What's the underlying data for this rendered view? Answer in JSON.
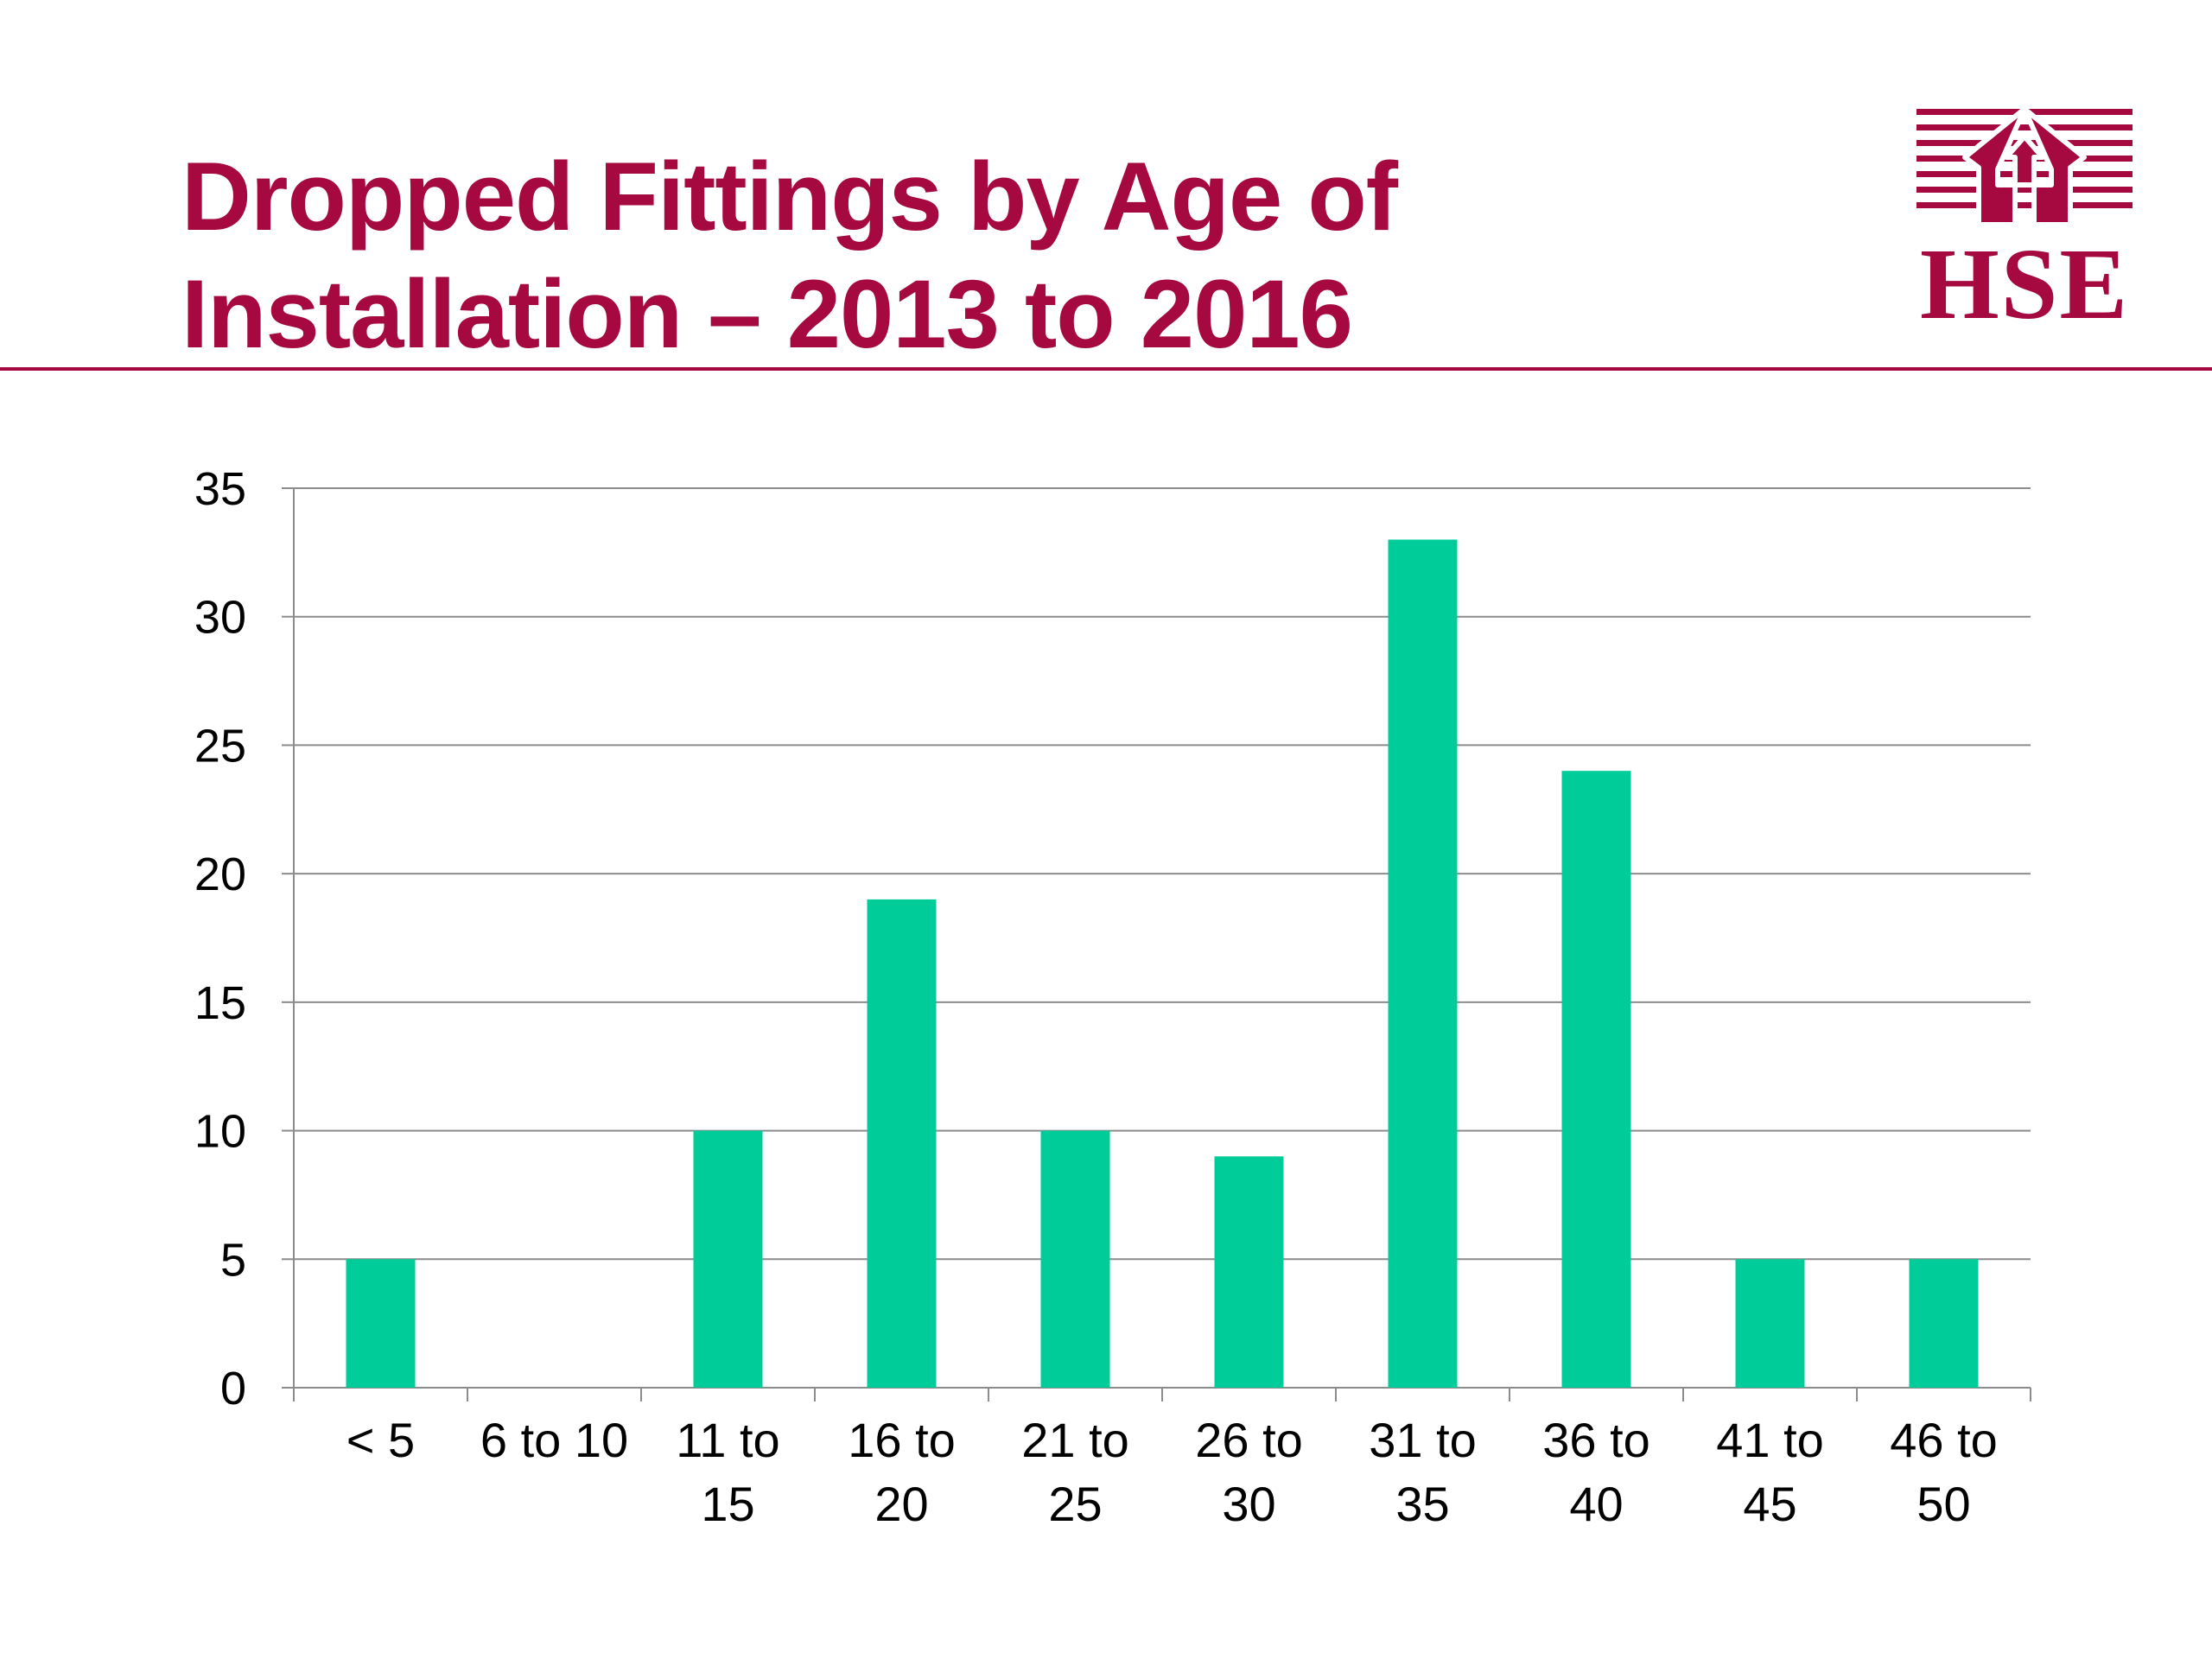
{
  "slide": {
    "title_line1": "Dropped Fittings by Age of",
    "title_line2": "Installation – 2013 to 2016",
    "accent_color": "#a5093f"
  },
  "logo": {
    "text": "HSE",
    "icon": "hse-house-icon"
  },
  "chart_data": {
    "type": "bar",
    "title": "",
    "xlabel": "",
    "ylabel": "",
    "categories": [
      [
        "< 5"
      ],
      [
        "6 to 10"
      ],
      [
        "11 to",
        "15"
      ],
      [
        "16 to",
        "20"
      ],
      [
        "21 to",
        "25"
      ],
      [
        "26 to",
        "30"
      ],
      [
        "31 to",
        "35"
      ],
      [
        "36 to",
        "40"
      ],
      [
        "41 to",
        "45"
      ],
      [
        "46 to",
        "50"
      ]
    ],
    "values": [
      5,
      0,
      10,
      19,
      10,
      9,
      33,
      24,
      5,
      5
    ],
    "ylim": [
      0,
      35
    ],
    "yticks": [
      0,
      5,
      10,
      15,
      20,
      25,
      30,
      35
    ],
    "grid": true,
    "legend": "none",
    "bar_color": "#00cc99",
    "grid_color": "#8c8c8c"
  }
}
